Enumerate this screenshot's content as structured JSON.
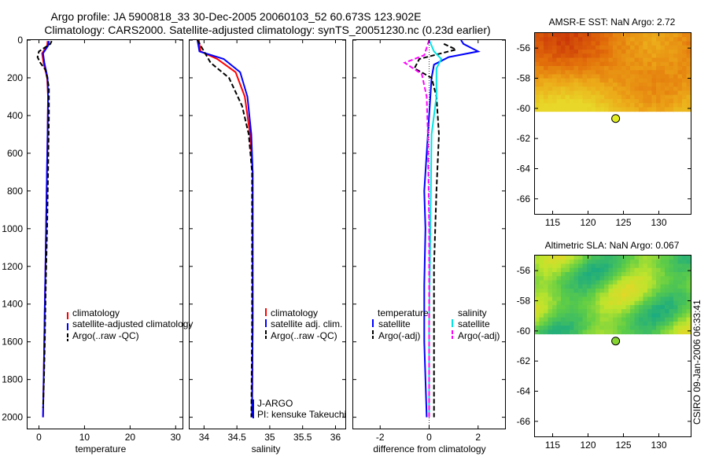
{
  "header": {
    "line1": "Argo profile: JA 5900818_33 30-Dec-2005 20060103_52 60.673S 123.902E",
    "line2": "Climatology: CARS2000. Satellite-adjusted climatology: synTS_20051230.nc (0.23d earlier)"
  },
  "side_label": "CSIRO 09-Jan-2006 06:33:41",
  "colors": {
    "red": "#ff0000",
    "blue": "#0000ff",
    "black": "#000000",
    "cyan": "#00e5e5",
    "magenta": "#ff00ff"
  },
  "chart_data": [
    {
      "type": "line",
      "xlabel": "temperature",
      "ylabel": "",
      "xlim": [
        -2.5,
        31.5
      ],
      "ylim": [
        2060,
        0
      ],
      "xticks": [
        0,
        10,
        20,
        30
      ],
      "yticks": [
        0,
        200,
        400,
        600,
        800,
        1000,
        1200,
        1400,
        1600,
        1800,
        2000
      ],
      "legend_placement": "lower-left",
      "series": [
        {
          "name": "climatology",
          "color": "#ff0000",
          "dash": false,
          "points": [
            [
              1.9,
              5
            ],
            [
              1.8,
              30
            ],
            [
              0.7,
              70
            ],
            [
              1.0,
              120
            ],
            [
              1.8,
              200
            ],
            [
              2.0,
              300
            ],
            [
              1.9,
              500
            ],
            [
              1.7,
              800
            ],
            [
              1.5,
              1100
            ],
            [
              1.3,
              1400
            ],
            [
              1.1,
              1700
            ],
            [
              0.9,
              2000
            ]
          ]
        },
        {
          "name": "satellite-adjusted climatology",
          "color": "#0000ff",
          "dash": false,
          "points": [
            [
              2.2,
              5
            ],
            [
              2.0,
              30
            ],
            [
              0.9,
              70
            ],
            [
              1.2,
              120
            ],
            [
              1.9,
              200
            ],
            [
              2.0,
              300
            ],
            [
              1.9,
              500
            ],
            [
              1.7,
              800
            ],
            [
              1.5,
              1100
            ],
            [
              1.3,
              1400
            ],
            [
              1.1,
              1700
            ],
            [
              0.9,
              2000
            ]
          ]
        },
        {
          "name": "Argo(..raw -QC)",
          "color": "#000000",
          "dash": true,
          "points": [
            [
              2.8,
              5
            ],
            [
              2.5,
              20
            ],
            [
              0.0,
              60
            ],
            [
              -0.3,
              90
            ],
            [
              0.3,
              120
            ],
            [
              1.5,
              160
            ],
            [
              2.2,
              250
            ],
            [
              2.2,
              400
            ],
            [
              2.0,
              700
            ],
            [
              1.8,
              1000
            ],
            [
              1.5,
              1300
            ],
            [
              1.3,
              1600
            ],
            [
              1.1,
              1800
            ],
            [
              0.9,
              1950
            ]
          ]
        }
      ]
    },
    {
      "type": "line",
      "xlabel": "salinity",
      "ylabel": "",
      "xlim": [
        33.78,
        36.15
      ],
      "ylim": [
        2060,
        0
      ],
      "xticks": [
        34,
        34.5,
        35,
        35.5,
        36
      ],
      "legend_placement": "lower-left",
      "annotations": [
        "J-ARGO",
        "PI: kensuke Takeuchi"
      ],
      "series": [
        {
          "name": "climatology",
          "color": "#ff0000",
          "dash": false,
          "points": [
            [
              33.92,
              0
            ],
            [
              33.95,
              60
            ],
            [
              34.2,
              100
            ],
            [
              34.48,
              170
            ],
            [
              34.62,
              300
            ],
            [
              34.7,
              500
            ],
            [
              34.74,
              700
            ],
            [
              34.74,
              1000
            ],
            [
              34.74,
              1500
            ],
            [
              34.73,
              2000
            ]
          ]
        },
        {
          "name": "satellite adj. clim.",
          "color": "#0000ff",
          "dash": false,
          "points": [
            [
              33.9,
              0
            ],
            [
              33.93,
              60
            ],
            [
              34.3,
              100
            ],
            [
              34.55,
              170
            ],
            [
              34.66,
              300
            ],
            [
              34.72,
              500
            ],
            [
              34.74,
              700
            ],
            [
              34.74,
              1000
            ],
            [
              34.74,
              1500
            ],
            [
              34.73,
              2000
            ]
          ]
        },
        {
          "name": "Argo(..raw -QC)",
          "color": "#000000",
          "dash": true,
          "points": [
            [
              33.9,
              0
            ],
            [
              34.0,
              60
            ],
            [
              34.1,
              120
            ],
            [
              34.38,
              200
            ],
            [
              34.58,
              350
            ],
            [
              34.68,
              500
            ],
            [
              34.73,
              700
            ],
            [
              34.73,
              1000
            ],
            [
              34.73,
              1500
            ],
            [
              34.72,
              2000
            ]
          ]
        }
      ]
    },
    {
      "type": "line",
      "xlabel": "difference from climatology",
      "ylabel": "",
      "xlim": [
        -3.1,
        3.1
      ],
      "ylim": [
        2060,
        0
      ],
      "xticks": [
        -2,
        0,
        2
      ],
      "legend_placement": "lower-left",
      "legend_headers": [
        "temperature",
        "salinity"
      ],
      "series": [
        {
          "name": "satellite",
          "group": "temperature",
          "color": "#0000ff",
          "dash": false,
          "points": [
            [
              1.3,
              0
            ],
            [
              1.4,
              20
            ],
            [
              2.0,
              60
            ],
            [
              0.8,
              90
            ],
            [
              0.2,
              130
            ],
            [
              0.1,
              200
            ],
            [
              0.0,
              400
            ],
            [
              -0.1,
              600
            ],
            [
              -0.2,
              800
            ],
            [
              -0.15,
              1000
            ],
            [
              -0.2,
              1300
            ],
            [
              -0.2,
              1600
            ],
            [
              -0.1,
              2000
            ]
          ]
        },
        {
          "name": "Argo(-adj)",
          "group": "temperature",
          "color": "#000000",
          "dash": true,
          "points": [
            [
              0.6,
              20
            ],
            [
              1.1,
              50
            ],
            [
              -0.4,
              100
            ],
            [
              -0.6,
              150
            ],
            [
              0.1,
              200
            ],
            [
              0.3,
              300
            ],
            [
              0.4,
              500
            ],
            [
              0.3,
              800
            ],
            [
              0.2,
              1200
            ],
            [
              0.2,
              1600
            ],
            [
              0.2,
              2000
            ]
          ]
        },
        {
          "name": "satellite",
          "group": "salinity",
          "color": "#00e5e5",
          "dash": false,
          "points": [
            [
              0.0,
              0
            ],
            [
              0.2,
              60
            ],
            [
              0.5,
              100
            ],
            [
              0.3,
              150
            ],
            [
              0.3,
              300
            ],
            [
              0.1,
              500
            ],
            [
              0.05,
              1000
            ],
            [
              0.0,
              1500
            ],
            [
              0.0,
              2000
            ]
          ]
        },
        {
          "name": "Argo(-adj)",
          "group": "salinity",
          "color": "#ff00ff",
          "dash": true,
          "points": [
            [
              0.0,
              0
            ],
            [
              -0.2,
              80
            ],
            [
              -1.0,
              120
            ],
            [
              -0.3,
              180
            ],
            [
              -0.1,
              300
            ],
            [
              -0.05,
              500
            ],
            [
              0.0,
              1000
            ],
            [
              0.0,
              2000
            ]
          ]
        }
      ]
    },
    {
      "type": "heatmap",
      "title": "AMSR-E SST: NaN Argo: 2.72",
      "xlim": [
        112.5,
        134.5
      ],
      "ylim": [
        -67,
        -55
      ],
      "xticks": [
        115,
        120,
        125,
        130
      ],
      "yticks": [
        -56,
        -58,
        -60,
        -62,
        -64,
        -66
      ],
      "data_extent_lat": [
        -55,
        -60.2
      ],
      "marker": {
        "lon": 123.902,
        "lat": -60.673,
        "color": "#e2ee22"
      }
    },
    {
      "type": "heatmap",
      "title": "Altimetric SLA: NaN Argo: 0.067",
      "xlim": [
        112.5,
        134.5
      ],
      "ylim": [
        -67,
        -55
      ],
      "xticks": [
        115,
        120,
        125,
        130
      ],
      "yticks": [
        -56,
        -58,
        -60,
        -62,
        -64,
        -66
      ],
      "data_extent_lat": [
        -55,
        -60.2
      ],
      "marker": {
        "lon": 123.902,
        "lat": -60.673,
        "color": "#86d430"
      }
    }
  ]
}
